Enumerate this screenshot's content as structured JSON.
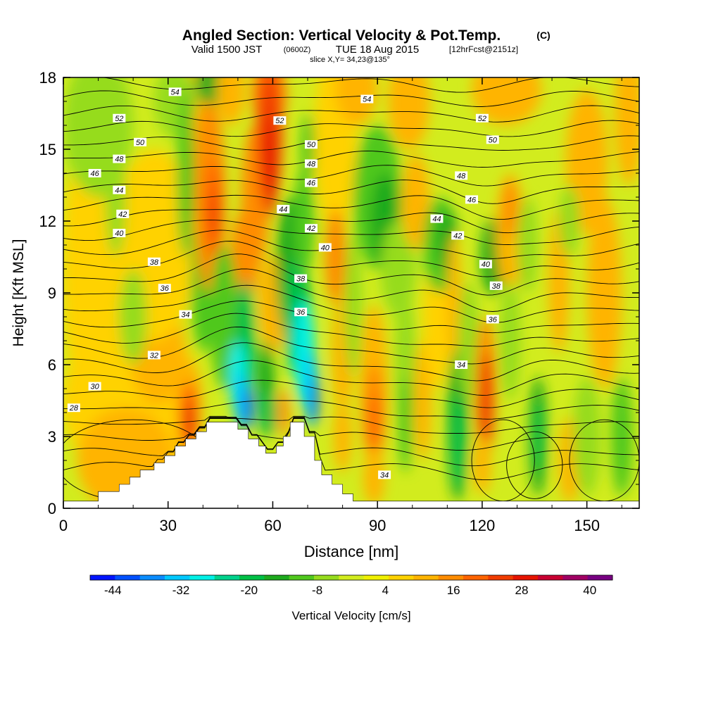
{
  "chart_data": {
    "type": "heatmap",
    "title": "Angled Section: Vertical Velocity & Pot.Temp.",
    "title_tag": "(C)",
    "subtitle_a": "Valid 1500 JST",
    "subtitle_b": "(0600Z)",
    "subtitle_c": "TUE 18 Aug 2015",
    "subtitle_d": "[12hrFcst@2151z]",
    "subtitle2": "slice X,Y= 34,23@135°",
    "xlabel": "Distance [nm]",
    "ylabel": "Height [Kft MSL]",
    "xlim": [
      0,
      165
    ],
    "ylim": [
      0,
      18
    ],
    "xticks": [
      "0",
      "30",
      "60",
      "90",
      "120",
      "150"
    ],
    "yticks": [
      "0",
      "3",
      "6",
      "9",
      "12",
      "15",
      "18"
    ],
    "colorbar": {
      "label": "Vertical Velocity [cm/s]",
      "tick_labels": [
        "-44",
        "-32",
        "-20",
        "-8",
        "4",
        "16",
        "28",
        "40"
      ],
      "colors": [
        "#0014ff",
        "#0050ff",
        "#0a8cff",
        "#00c8ff",
        "#00f0e6",
        "#00d28c",
        "#00c046",
        "#1eaa1e",
        "#50c81e",
        "#96dc1e",
        "#d2ec1e",
        "#f0f000",
        "#ffd200",
        "#ffb400",
        "#ff8c00",
        "#ff6400",
        "#f03c00",
        "#e61400",
        "#c80032",
        "#a00064",
        "#780082"
      ]
    },
    "terrain": [
      [
        0,
        0.3
      ],
      [
        10,
        0.3
      ],
      [
        10,
        0.7
      ],
      [
        16,
        0.7
      ],
      [
        16,
        1.0
      ],
      [
        19,
        1.0
      ],
      [
        19,
        1.3
      ],
      [
        22,
        1.3
      ],
      [
        22,
        1.6
      ],
      [
        26,
        1.6
      ],
      [
        26,
        1.9
      ],
      [
        29,
        1.9
      ],
      [
        29,
        2.2
      ],
      [
        32,
        2.2
      ],
      [
        32,
        2.6
      ],
      [
        35,
        2.6
      ],
      [
        35,
        2.9
      ],
      [
        38,
        2.9
      ],
      [
        38,
        3.2
      ],
      [
        41,
        3.2
      ],
      [
        41,
        3.6
      ],
      [
        50,
        3.6
      ],
      [
        50,
        3.3
      ],
      [
        53,
        3.3
      ],
      [
        53,
        2.9
      ],
      [
        56,
        2.9
      ],
      [
        56,
        2.6
      ],
      [
        58,
        2.6
      ],
      [
        58,
        2.3
      ],
      [
        61,
        2.3
      ],
      [
        61,
        2.6
      ],
      [
        63,
        2.6
      ],
      [
        63,
        3.0
      ],
      [
        65,
        3.0
      ],
      [
        65,
        3.6
      ],
      [
        69,
        3.6
      ],
      [
        69,
        3.0
      ],
      [
        72,
        3.0
      ],
      [
        72,
        2.0
      ],
      [
        74,
        2.0
      ],
      [
        74,
        1.4
      ],
      [
        77,
        1.4
      ],
      [
        77,
        1.0
      ],
      [
        80,
        1.0
      ],
      [
        80,
        0.6
      ],
      [
        83,
        0.6
      ],
      [
        83,
        0.3
      ],
      [
        165,
        0.3
      ]
    ],
    "contour_labels": [
      {
        "label": "54",
        "x": 32,
        "y": 17.4
      },
      {
        "label": "52",
        "x": 16,
        "y": 16.3
      },
      {
        "label": "50",
        "x": 22,
        "y": 15.3
      },
      {
        "label": "48",
        "x": 16,
        "y": 14.6
      },
      {
        "label": "46",
        "x": 9,
        "y": 14.0
      },
      {
        "label": "44",
        "x": 16,
        "y": 13.3
      },
      {
        "label": "42",
        "x": 17,
        "y": 12.3
      },
      {
        "label": "40",
        "x": 16,
        "y": 11.5
      },
      {
        "label": "38",
        "x": 26,
        "y": 10.3
      },
      {
        "label": "36",
        "x": 29,
        "y": 9.2
      },
      {
        "label": "34",
        "x": 35,
        "y": 8.1
      },
      {
        "label": "32",
        "x": 26,
        "y": 6.4
      },
      {
        "label": "30",
        "x": 9,
        "y": 5.1
      },
      {
        "label": "28",
        "x": 3,
        "y": 4.2
      },
      {
        "label": "52",
        "x": 62,
        "y": 16.2
      },
      {
        "label": "50",
        "x": 71,
        "y": 15.2
      },
      {
        "label": "48",
        "x": 71,
        "y": 14.4
      },
      {
        "label": "46",
        "x": 71,
        "y": 13.6
      },
      {
        "label": "44",
        "x": 63,
        "y": 12.5
      },
      {
        "label": "42",
        "x": 71,
        "y": 11.7
      },
      {
        "label": "40",
        "x": 75,
        "y": 10.9
      },
      {
        "label": "38",
        "x": 68,
        "y": 9.6
      },
      {
        "label": "36",
        "x": 68,
        "y": 8.2
      },
      {
        "label": "54",
        "x": 87,
        "y": 17.1
      },
      {
        "label": "52",
        "x": 120,
        "y": 16.3
      },
      {
        "label": "50",
        "x": 123,
        "y": 15.4
      },
      {
        "label": "48",
        "x": 114,
        "y": 13.9
      },
      {
        "label": "46",
        "x": 117,
        "y": 12.9
      },
      {
        "label": "44",
        "x": 107,
        "y": 12.1
      },
      {
        "label": "42",
        "x": 113,
        "y": 11.4
      },
      {
        "label": "40",
        "x": 121,
        "y": 10.2
      },
      {
        "label": "38",
        "x": 124,
        "y": 9.3
      },
      {
        "label": "36",
        "x": 123,
        "y": 7.9
      },
      {
        "label": "34",
        "x": 114,
        "y": 6.0
      },
      {
        "label": "34",
        "x": 92,
        "y": 1.4
      }
    ],
    "blobs": [
      {
        "c": "#ffd200",
        "x": 20,
        "y": 4.5,
        "sx": 20,
        "sy": 3.5
      },
      {
        "c": "#ffb400",
        "x": 18,
        "y": 2,
        "sx": 14,
        "sy": 2.2
      },
      {
        "c": "#ffb400",
        "x": 27,
        "y": 6.5,
        "sx": 8,
        "sy": 2.2
      },
      {
        "c": "#ffd200",
        "x": 26,
        "y": 11,
        "sx": 12,
        "sy": 4
      },
      {
        "c": "#ffd200",
        "x": 8,
        "y": 10,
        "sx": 8,
        "sy": 6
      },
      {
        "c": "#96dc1e",
        "x": 10,
        "y": 16,
        "sx": 10,
        "sy": 3
      },
      {
        "c": "#96dc1e",
        "x": 15,
        "y": 13,
        "sx": 3,
        "sy": 2.5
      },
      {
        "c": "#96dc1e",
        "x": 20,
        "y": 8,
        "sx": 4,
        "sy": 2
      },
      {
        "c": "#ffb400",
        "x": 38,
        "y": 15.5,
        "sx": 4,
        "sy": 3
      },
      {
        "c": "#96dc1e",
        "x": 32,
        "y": 17,
        "sx": 6,
        "sy": 1.5
      },
      {
        "c": "#ffb400",
        "x": 36,
        "y": 4.2,
        "sx": 4,
        "sy": 2
      },
      {
        "c": "#ff6400",
        "x": 36,
        "y": 3.8,
        "sx": 2.5,
        "sy": 1.5
      },
      {
        "c": "#e61400",
        "x": 36,
        "y": 3.6,
        "sx": 1.2,
        "sy": 0.9
      },
      {
        "c": "#50c81e",
        "x": 35,
        "y": 14,
        "sx": 2.5,
        "sy": 3.5
      },
      {
        "c": "#50c81e",
        "x": 40,
        "y": 9.5,
        "sx": 3.5,
        "sy": 3
      },
      {
        "c": "#1eaa1e",
        "x": 42,
        "y": 17.8,
        "sx": 4,
        "sy": 1
      },
      {
        "c": "#ff8c00",
        "x": 42,
        "y": 13,
        "sx": 4.5,
        "sy": 4
      },
      {
        "c": "#ff6400",
        "x": 43,
        "y": 12.5,
        "sx": 2.5,
        "sy": 2
      },
      {
        "c": "#f03c00",
        "x": 43,
        "y": 12.3,
        "sx": 1.2,
        "sy": 1
      },
      {
        "c": "#ff8c00",
        "x": 55,
        "y": 13,
        "sx": 4,
        "sy": 3
      },
      {
        "c": "#ff8c00",
        "x": 52,
        "y": 10.5,
        "sx": 4,
        "sy": 2
      },
      {
        "c": "#ffb400",
        "x": 48,
        "y": 17.5,
        "sx": 4,
        "sy": 1.5
      },
      {
        "c": "#ff8c00",
        "x": 59,
        "y": 17.3,
        "sx": 5,
        "sy": 1.5
      },
      {
        "c": "#ff6400",
        "x": 59,
        "y": 16,
        "sx": 4,
        "sy": 3.5
      },
      {
        "c": "#f03c00",
        "x": 59,
        "y": 15.2,
        "sx": 3,
        "sy": 3
      },
      {
        "c": "#e61400",
        "x": 59,
        "y": 14.6,
        "sx": 1.6,
        "sy": 1.8
      },
      {
        "c": "#ffb400",
        "x": 60,
        "y": 8.5,
        "sx": 4,
        "sy": 2
      },
      {
        "c": "#50c81e",
        "x": 46,
        "y": 8,
        "sx": 4,
        "sy": 3
      },
      {
        "c": "#00c046",
        "x": 52,
        "y": 7,
        "sx": 3,
        "sy": 2.5
      },
      {
        "c": "#00f0e6",
        "x": 50,
        "y": 5.5,
        "sx": 2.5,
        "sy": 1.5
      },
      {
        "c": "#00c8ff",
        "x": 51,
        "y": 4.5,
        "sx": 2,
        "sy": 1.2
      },
      {
        "c": "#0050ff",
        "x": 53,
        "y": 4.2,
        "sx": 1.2,
        "sy": 0.9
      },
      {
        "c": "#1eaa1e",
        "x": 65,
        "y": 10,
        "sx": 4,
        "sy": 3
      },
      {
        "c": "#00c046",
        "x": 67,
        "y": 8,
        "sx": 4,
        "sy": 2.5
      },
      {
        "c": "#00f0e6",
        "x": 69,
        "y": 6.5,
        "sx": 3,
        "sy": 2.2
      },
      {
        "c": "#00c8ff",
        "x": 71,
        "y": 5,
        "sx": 2,
        "sy": 1.6
      },
      {
        "c": "#0050ff",
        "x": 72,
        "y": 4.5,
        "sx": 1,
        "sy": 1
      },
      {
        "c": "#1eaa1e",
        "x": 58,
        "y": 5,
        "sx": 2.5,
        "sy": 2
      },
      {
        "c": "#00c046",
        "x": 59,
        "y": 4,
        "sx": 2,
        "sy": 1
      },
      {
        "c": "#50c81e",
        "x": 69,
        "y": 12,
        "sx": 3,
        "sy": 2.2
      },
      {
        "c": "#50c81e",
        "x": 70,
        "y": 15,
        "sx": 2,
        "sy": 1.5
      },
      {
        "c": "#ff8c00",
        "x": 63,
        "y": 4,
        "sx": 1.6,
        "sy": 1
      },
      {
        "c": "#ffd200",
        "x": 78,
        "y": 15.5,
        "sx": 6,
        "sy": 4
      },
      {
        "c": "#ff8c00",
        "x": 78,
        "y": 10.5,
        "sx": 3,
        "sy": 2
      },
      {
        "c": "#ffb400",
        "x": 80,
        "y": 6.5,
        "sx": 3,
        "sy": 2.5
      },
      {
        "c": "#ffb400",
        "x": 80,
        "y": 3,
        "sx": 2.5,
        "sy": 1.5
      },
      {
        "c": "#96dc1e",
        "x": 83,
        "y": 8.5,
        "sx": 2.5,
        "sy": 3
      },
      {
        "c": "#ffb400",
        "x": 84,
        "y": 17.5,
        "sx": 6,
        "sy": 1.5
      },
      {
        "c": "#50c81e",
        "x": 90,
        "y": 13,
        "sx": 7,
        "sy": 3
      },
      {
        "c": "#1eaa1e",
        "x": 92,
        "y": 12,
        "sx": 4,
        "sy": 2
      },
      {
        "c": "#96dc1e",
        "x": 96,
        "y": 10,
        "sx": 5,
        "sy": 2
      },
      {
        "c": "#ffb400",
        "x": 89,
        "y": 5,
        "sx": 4,
        "sy": 3.5
      },
      {
        "c": "#ff8c00",
        "x": 89,
        "y": 4,
        "sx": 3,
        "sy": 2
      },
      {
        "c": "#ff6400",
        "x": 89,
        "y": 3.6,
        "sx": 1.5,
        "sy": 1.2
      },
      {
        "c": "#ffb400",
        "x": 89,
        "y": 1.3,
        "sx": 3,
        "sy": 1.2
      },
      {
        "c": "#ffb400",
        "x": 99,
        "y": 17,
        "sx": 6,
        "sy": 2
      },
      {
        "c": "#ffb400",
        "x": 101,
        "y": 12.8,
        "sx": 4,
        "sy": 2
      },
      {
        "c": "#96dc1e",
        "x": 98,
        "y": 6,
        "sx": 3,
        "sy": 3
      },
      {
        "c": "#50c81e",
        "x": 98,
        "y": 3.5,
        "sx": 2,
        "sy": 2
      },
      {
        "c": "#ffb400",
        "x": 103,
        "y": 4.5,
        "sx": 2.5,
        "sy": 2.5
      },
      {
        "c": "#ffd200",
        "x": 107,
        "y": 8,
        "sx": 4,
        "sy": 3
      },
      {
        "c": "#50c81e",
        "x": 108,
        "y": 11,
        "sx": 5,
        "sy": 2
      },
      {
        "c": "#1eaa1e",
        "x": 110,
        "y": 11.2,
        "sx": 3,
        "sy": 1.3
      },
      {
        "c": "#ffb400",
        "x": 112,
        "y": 8.5,
        "sx": 2,
        "sy": 3
      },
      {
        "c": "#1eaa1e",
        "x": 113,
        "y": 3.5,
        "sx": 3,
        "sy": 3.2
      },
      {
        "c": "#00c046",
        "x": 113,
        "y": 2.8,
        "sx": 2,
        "sy": 2
      },
      {
        "c": "#96dc1e",
        "x": 116,
        "y": 7,
        "sx": 3,
        "sy": 2.5
      },
      {
        "c": "#ff8c00",
        "x": 121,
        "y": 5,
        "sx": 3,
        "sy": 3
      },
      {
        "c": "#f03c00",
        "x": 121,
        "y": 4.5,
        "sx": 2,
        "sy": 2
      },
      {
        "c": "#ffb400",
        "x": 120,
        "y": 1.8,
        "sx": 2.5,
        "sy": 1.2
      },
      {
        "c": "#1eaa1e",
        "x": 123,
        "y": 10.5,
        "sx": 3.5,
        "sy": 1.6
      },
      {
        "c": "#ffb400",
        "x": 128,
        "y": 11.5,
        "sx": 4,
        "sy": 2.5
      },
      {
        "c": "#ff8c00",
        "x": 128,
        "y": 12.5,
        "sx": 2,
        "sy": 1.2
      },
      {
        "c": "#ffb400",
        "x": 127,
        "y": 17.5,
        "sx": 10,
        "sy": 1.5
      },
      {
        "c": "#96dc1e",
        "x": 128,
        "y": 7,
        "sx": 3,
        "sy": 2.5
      },
      {
        "c": "#96dc1e",
        "x": 133,
        "y": 11,
        "sx": 3,
        "sy": 2
      },
      {
        "c": "#1eaa1e",
        "x": 136,
        "y": 3,
        "sx": 2.5,
        "sy": 2.5
      },
      {
        "c": "#00c046",
        "x": 136,
        "y": 3,
        "sx": 1.2,
        "sy": 1.5
      },
      {
        "c": "#ffb400",
        "x": 142,
        "y": 9.5,
        "sx": 3,
        "sy": 3
      },
      {
        "c": "#ffb400",
        "x": 150,
        "y": 14.5,
        "sx": 6,
        "sy": 3
      },
      {
        "c": "#ffb400",
        "x": 155,
        "y": 9,
        "sx": 5,
        "sy": 4
      },
      {
        "c": "#ffb400",
        "x": 145,
        "y": 2,
        "sx": 3,
        "sy": 1.8
      },
      {
        "c": "#96dc1e",
        "x": 150,
        "y": 3,
        "sx": 4,
        "sy": 2.5
      },
      {
        "c": "#50c81e",
        "x": 160,
        "y": 3,
        "sx": 3,
        "sy": 2.5
      },
      {
        "c": "#96dc1e",
        "x": 145,
        "y": 12,
        "sx": 3,
        "sy": 1.5
      },
      {
        "c": "#ffb400",
        "x": 162,
        "y": 16.5,
        "sx": 4,
        "sy": 3
      }
    ]
  }
}
